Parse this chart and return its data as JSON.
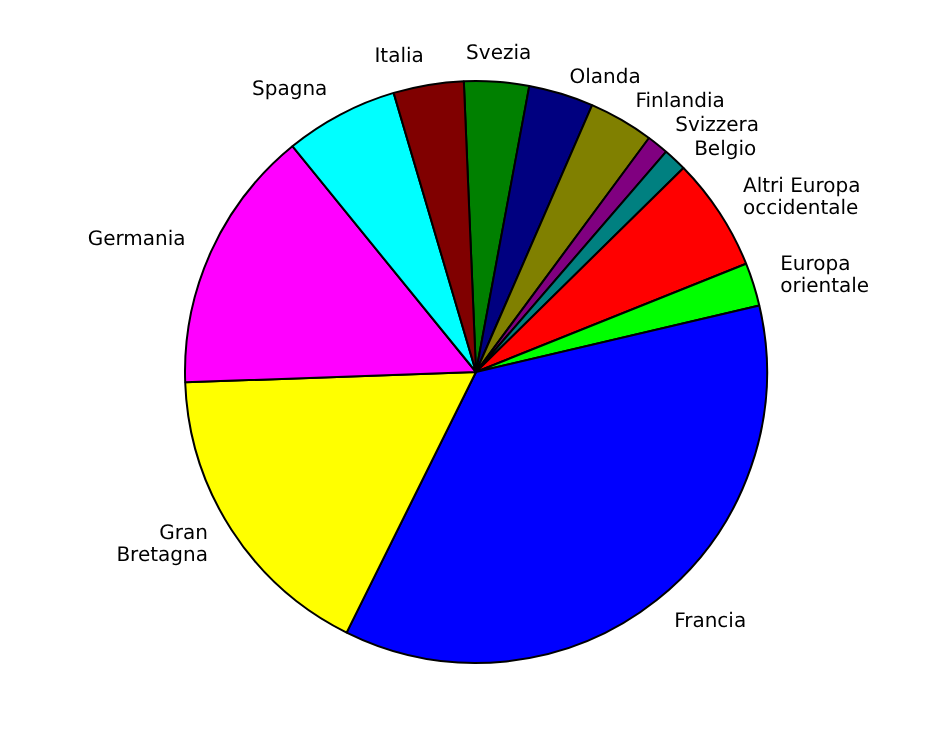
{
  "chart_data": {
    "type": "pie",
    "legend": false,
    "categories": [
      "Svezia",
      "Olanda",
      "Finlandia",
      "Svizzera",
      "Belgio",
      "Altri Europa occidentale",
      "Europa orientale",
      "Francia",
      "Gran Bretagna",
      "Germania",
      "Spagna",
      "Italia"
    ],
    "values": [
      3.6,
      3.6,
      3.6,
      1.2,
      1.3,
      6.3,
      2.4,
      36.0,
      17.1,
      14.7,
      6.3,
      3.9
    ],
    "colors": [
      "#008000",
      "#000080",
      "#808000",
      "#800080",
      "#008080",
      "#ff0000",
      "#00ff00",
      "#0000ff",
      "#ffff00",
      "#ff00ff",
      "#00ffff",
      "#800000"
    ]
  }
}
